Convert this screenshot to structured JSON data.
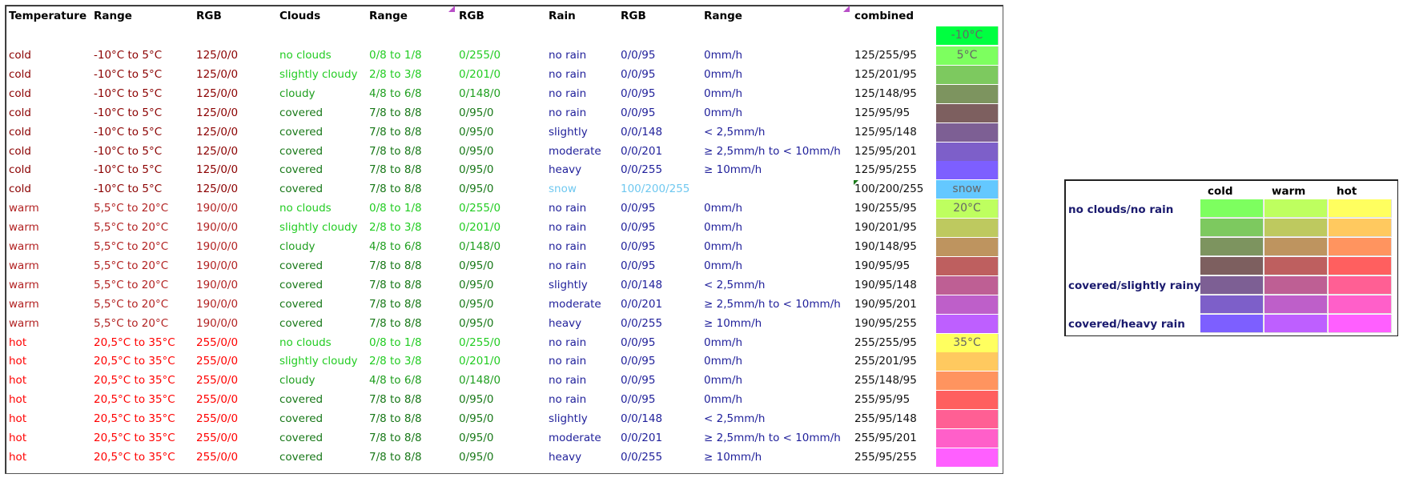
{
  "headers": {
    "temperature": "Temperature",
    "range1": "Range",
    "rgb1": "RGB",
    "clouds": "Clouds",
    "range2": "Range",
    "rgb2": "RGB",
    "rain": "Rain",
    "rgb3": "RGB",
    "range3": "Range",
    "combined": "combined"
  },
  "header_swatch": {
    "label": "-10°C",
    "color": "#00FF40"
  },
  "rows": [
    {
      "temp": "cold",
      "trange": "-10°C to 5°C",
      "trgb": "125/0/0",
      "cloud": "no clouds",
      "crange": "0/8 to 1/8",
      "crgb": "0/255/0",
      "rain": "no rain",
      "rrgb": "0/0/95",
      "rrange": "0mm/h",
      "combined": "125/255/95",
      "color": "#7DFF5F",
      "label": "5°C"
    },
    {
      "temp": "cold",
      "trange": "-10°C to 5°C",
      "trgb": "125/0/0",
      "cloud": "slightly cloudy",
      "crange": "2/8 to 3/8",
      "crgb": "0/201/0",
      "rain": "no rain",
      "rrgb": "0/0/95",
      "rrange": "0mm/h",
      "combined": "125/201/95",
      "color": "#7DC95F",
      "label": ""
    },
    {
      "temp": "cold",
      "trange": "-10°C to 5°C",
      "trgb": "125/0/0",
      "cloud": "cloudy",
      "crange": "4/8 to 6/8",
      "crgb": "0/148/0",
      "rain": "no rain",
      "rrgb": "0/0/95",
      "rrange": "0mm/h",
      "combined": "125/148/95",
      "color": "#7D945F",
      "label": ""
    },
    {
      "temp": "cold",
      "trange": "-10°C to 5°C",
      "trgb": "125/0/0",
      "cloud": "covered",
      "crange": "7/8 to 8/8",
      "crgb": "0/95/0",
      "rain": "no rain",
      "rrgb": "0/0/95",
      "rrange": "0mm/h",
      "combined": "125/95/95",
      "color": "#7D5F5F",
      "label": ""
    },
    {
      "temp": "cold",
      "trange": "-10°C to 5°C",
      "trgb": "125/0/0",
      "cloud": "covered",
      "crange": "7/8 to 8/8",
      "crgb": "0/95/0",
      "rain": "slightly",
      "rrgb": "0/0/148",
      "rrange": "< 2,5mm/h",
      "combined": "125/95/148",
      "color": "#7D5F94",
      "label": ""
    },
    {
      "temp": "cold",
      "trange": "-10°C to 5°C",
      "trgb": "125/0/0",
      "cloud": "covered",
      "crange": "7/8 to 8/8",
      "crgb": "0/95/0",
      "rain": "moderate",
      "rrgb": "0/0/201",
      "rrange": "≥ 2,5mm/h to < 10mm/h",
      "combined": "125/95/201",
      "color": "#7D5FC9",
      "label": ""
    },
    {
      "temp": "cold",
      "trange": "-10°C to 5°C",
      "trgb": "125/0/0",
      "cloud": "covered",
      "crange": "7/8 to 8/8",
      "crgb": "0/95/0",
      "rain": "heavy",
      "rrgb": "0/0/255",
      "rrange": "≥ 10mm/h",
      "combined": "125/95/255",
      "color": "#7D5FFF",
      "label": ""
    },
    {
      "temp": "cold",
      "trange": "-10°C to 5°C",
      "trgb": "125/0/0",
      "cloud": "covered",
      "crange": "7/8 to 8/8",
      "crgb": "0/95/0",
      "rain": "snow",
      "rrgb": "100/200/255",
      "rrange": "",
      "combined": "100/200/255",
      "color": "#64C8FF",
      "label": "snow"
    },
    {
      "temp": "warm",
      "trange": "5,5°C to 20°C",
      "trgb": "190/0/0",
      "cloud": "no clouds",
      "crange": "0/8 to 1/8",
      "crgb": "0/255/0",
      "rain": "no rain",
      "rrgb": "0/0/95",
      "rrange": "0mm/h",
      "combined": "190/255/95",
      "color": "#BEFF5F",
      "label": "20°C"
    },
    {
      "temp": "warm",
      "trange": "5,5°C to 20°C",
      "trgb": "190/0/0",
      "cloud": "slightly cloudy",
      "crange": "2/8 to 3/8",
      "crgb": "0/201/0",
      "rain": "no rain",
      "rrgb": "0/0/95",
      "rrange": "0mm/h",
      "combined": "190/201/95",
      "color": "#BEC95F",
      "label": ""
    },
    {
      "temp": "warm",
      "trange": "5,5°C to 20°C",
      "trgb": "190/0/0",
      "cloud": "cloudy",
      "crange": "4/8 to 6/8",
      "crgb": "0/148/0",
      "rain": "no rain",
      "rrgb": "0/0/95",
      "rrange": "0mm/h",
      "combined": "190/148/95",
      "color": "#BE945F",
      "label": ""
    },
    {
      "temp": "warm",
      "trange": "5,5°C to 20°C",
      "trgb": "190/0/0",
      "cloud": "covered",
      "crange": "7/8 to 8/8",
      "crgb": "0/95/0",
      "rain": "no rain",
      "rrgb": "0/0/95",
      "rrange": "0mm/h",
      "combined": "190/95/95",
      "color": "#BE5F5F",
      "label": ""
    },
    {
      "temp": "warm",
      "trange": "5,5°C to 20°C",
      "trgb": "190/0/0",
      "cloud": "covered",
      "crange": "7/8 to 8/8",
      "crgb": "0/95/0",
      "rain": "slightly",
      "rrgb": "0/0/148",
      "rrange": "< 2,5mm/h",
      "combined": "190/95/148",
      "color": "#BE5F94",
      "label": ""
    },
    {
      "temp": "warm",
      "trange": "5,5°C to 20°C",
      "trgb": "190/0/0",
      "cloud": "covered",
      "crange": "7/8 to 8/8",
      "crgb": "0/95/0",
      "rain": "moderate",
      "rrgb": "0/0/201",
      "rrange": "≥ 2,5mm/h to < 10mm/h",
      "combined": "190/95/201",
      "color": "#BE5FC9",
      "label": ""
    },
    {
      "temp": "warm",
      "trange": "5,5°C to 20°C",
      "trgb": "190/0/0",
      "cloud": "covered",
      "crange": "7/8 to 8/8",
      "crgb": "0/95/0",
      "rain": "heavy",
      "rrgb": "0/0/255",
      "rrange": "≥ 10mm/h",
      "combined": "190/95/255",
      "color": "#BE5FFF",
      "label": ""
    },
    {
      "temp": "hot",
      "trange": "20,5°C to 35°C",
      "trgb": "255/0/0",
      "cloud": "no clouds",
      "crange": "0/8 to 1/8",
      "crgb": "0/255/0",
      "rain": "no rain",
      "rrgb": "0/0/95",
      "rrange": "0mm/h",
      "combined": "255/255/95",
      "color": "#FFFF5F",
      "label": "35°C"
    },
    {
      "temp": "hot",
      "trange": "20,5°C to 35°C",
      "trgb": "255/0/0",
      "cloud": "slightly cloudy",
      "crange": "2/8 to 3/8",
      "crgb": "0/201/0",
      "rain": "no rain",
      "rrgb": "0/0/95",
      "rrange": "0mm/h",
      "combined": "255/201/95",
      "color": "#FFC95F",
      "label": ""
    },
    {
      "temp": "hot",
      "trange": "20,5°C to 35°C",
      "trgb": "255/0/0",
      "cloud": "cloudy",
      "crange": "4/8 to 6/8",
      "crgb": "0/148/0",
      "rain": "no rain",
      "rrgb": "0/0/95",
      "rrange": "0mm/h",
      "combined": "255/148/95",
      "color": "#FF945F",
      "label": ""
    },
    {
      "temp": "hot",
      "trange": "20,5°C to 35°C",
      "trgb": "255/0/0",
      "cloud": "covered",
      "crange": "7/8 to 8/8",
      "crgb": "0/95/0",
      "rain": "no rain",
      "rrgb": "0/0/95",
      "rrange": "0mm/h",
      "combined": "255/95/95",
      "color": "#FF5F5F",
      "label": ""
    },
    {
      "temp": "hot",
      "trange": "20,5°C to 35°C",
      "trgb": "255/0/0",
      "cloud": "covered",
      "crange": "7/8 to 8/8",
      "crgb": "0/95/0",
      "rain": "slightly",
      "rrgb": "0/0/148",
      "rrange": "< 2,5mm/h",
      "combined": "255/95/148",
      "color": "#FF5F94",
      "label": ""
    },
    {
      "temp": "hot",
      "trange": "20,5°C to 35°C",
      "trgb": "255/0/0",
      "cloud": "covered",
      "crange": "7/8 to 8/8",
      "crgb": "0/95/0",
      "rain": "moderate",
      "rrgb": "0/0/201",
      "rrange": "≥ 2,5mm/h to < 10mm/h",
      "combined": "255/95/201",
      "color": "#FF5FC9",
      "label": ""
    },
    {
      "temp": "hot",
      "trange": "20,5°C to 35°C",
      "trgb": "255/0/0",
      "cloud": "covered",
      "crange": "7/8 to 8/8",
      "crgb": "0/95/0",
      "rain": "heavy",
      "rrgb": "0/0/255",
      "rrange": "≥ 10mm/h",
      "combined": "255/95/255",
      "color": "#FF5FFF",
      "label": ""
    }
  ],
  "colors": {
    "cold_text": "#8B0000",
    "warm_text": "#B22222",
    "hot_text": "#FF0000",
    "clouds_bright": "#22CC22",
    "clouds_mid": "#1E9E1E",
    "clouds_dark": "#187818",
    "rain_text": "#1F1F9A",
    "snow_text": "#6FC8F0"
  },
  "legend": {
    "headers": [
      "cold",
      "warm",
      "hot"
    ],
    "row_labels": {
      "top": "no clouds/no rain",
      "middle": "covered/slightly rainy",
      "bottom": "covered/heavy rain"
    },
    "grid": [
      [
        "#7DFF5F",
        "#BEFF5F",
        "#FFFF5F"
      ],
      [
        "#7DC95F",
        "#BEC95F",
        "#FFC95F"
      ],
      [
        "#7D945F",
        "#BE945F",
        "#FF945F"
      ],
      [
        "#7D5F5F",
        "#BE5F5F",
        "#FF5F5F"
      ],
      [
        "#7D5F94",
        "#BE5F94",
        "#FF5F94"
      ],
      [
        "#7D5FC9",
        "#BE5FC9",
        "#FF5FC9"
      ],
      [
        "#7D5FFF",
        "#BE5FFF",
        "#FF5FFF"
      ]
    ]
  }
}
